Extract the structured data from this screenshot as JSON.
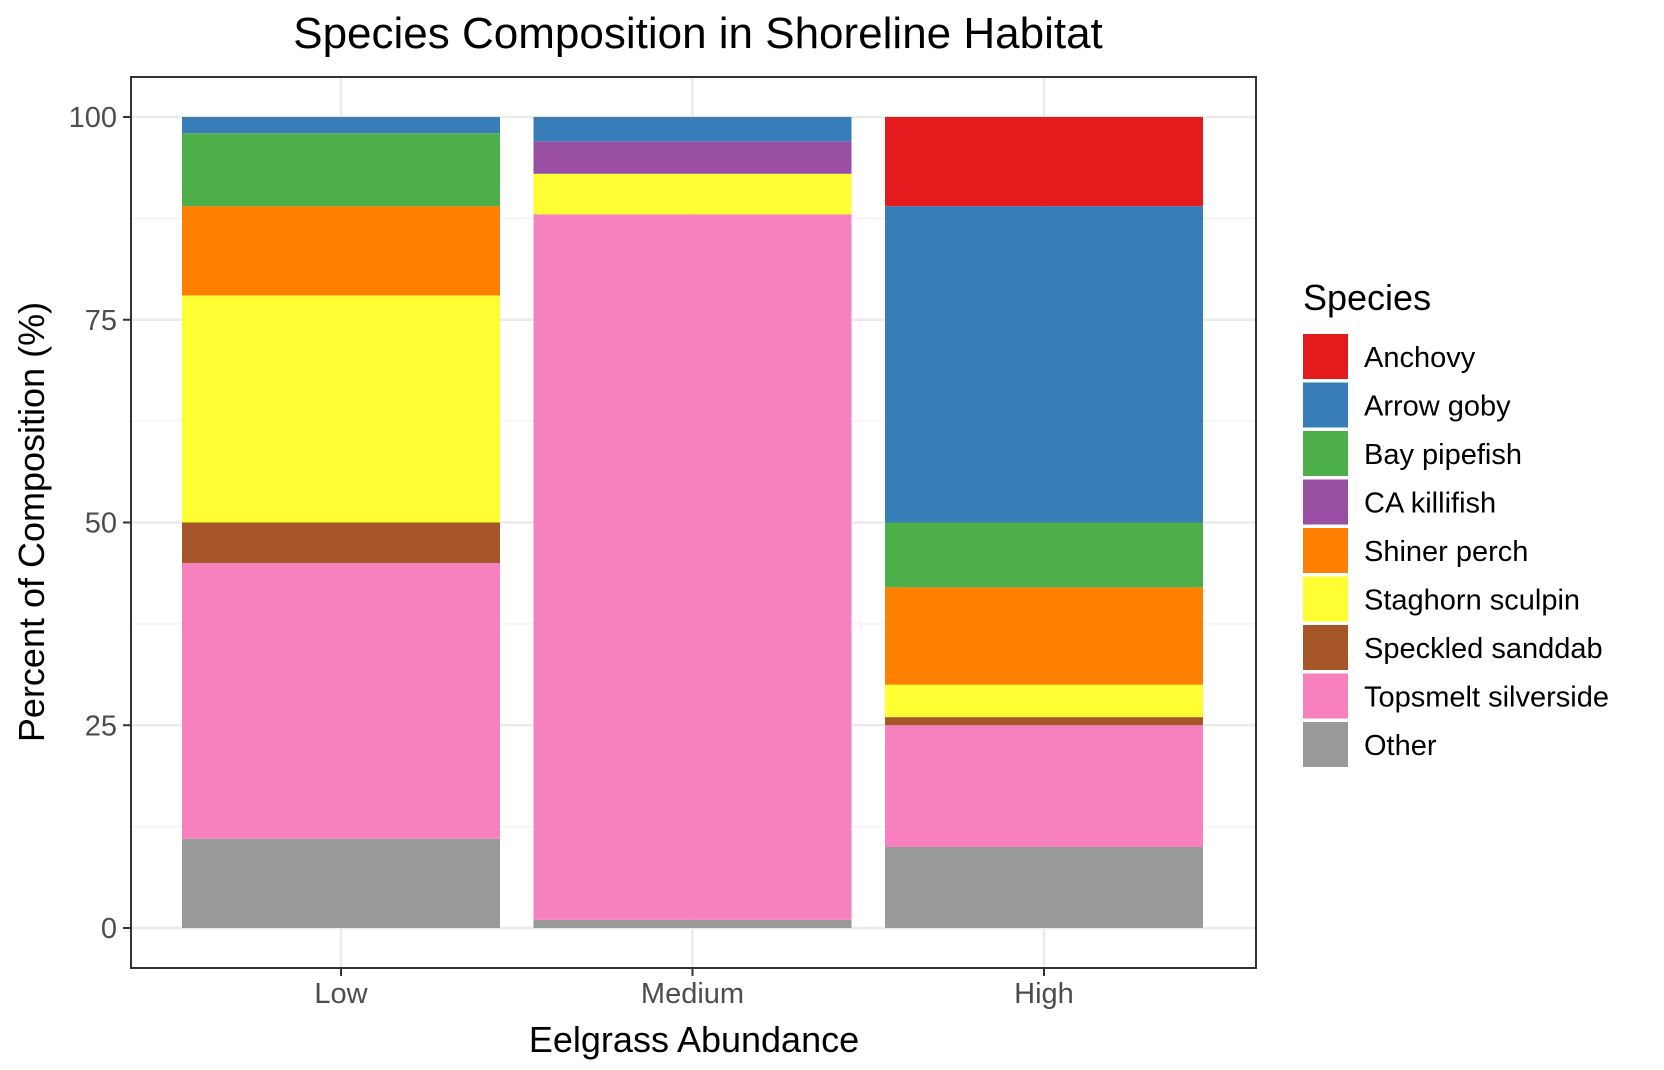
{
  "chart_data": {
    "type": "bar",
    "stacked": true,
    "title": "Species Composition in Shoreline Habitat",
    "xlabel": "Eelgrass Abundance",
    "ylabel": "Percent of Composition (%)",
    "ylim": [
      0,
      100
    ],
    "yticks": [
      0,
      25,
      50,
      75,
      100
    ],
    "grid": true,
    "legend_title": "Species",
    "legend_position": "right",
    "categories": [
      "Low",
      "Medium",
      "High"
    ],
    "series": [
      {
        "name": "Other",
        "color": "#999999",
        "values": [
          11,
          1,
          10
        ]
      },
      {
        "name": "Topsmelt silverside",
        "color": "#F781BF",
        "values": [
          34,
          87,
          15
        ]
      },
      {
        "name": "Speckled sanddab",
        "color": "#A65628",
        "values": [
          5,
          0,
          1
        ]
      },
      {
        "name": "Staghorn sculpin",
        "color": "#FFFF33",
        "values": [
          28,
          5,
          4
        ]
      },
      {
        "name": "Shiner perch",
        "color": "#FF7F00",
        "values": [
          11,
          0,
          12
        ]
      },
      {
        "name": "CA killifish",
        "color": "#984EA3",
        "values": [
          0,
          4,
          0
        ]
      },
      {
        "name": "Bay pipefish",
        "color": "#4DAF4A",
        "values": [
          9,
          0,
          8
        ]
      },
      {
        "name": "Arrow goby",
        "color": "#377EB8",
        "values": [
          2,
          3,
          39
        ]
      },
      {
        "name": "Anchovy",
        "color": "#E41A1C",
        "values": [
          0,
          0,
          11
        ]
      }
    ],
    "legend_order": [
      "Anchovy",
      "Arrow goby",
      "Bay pipefish",
      "CA killifish",
      "Shiner perch",
      "Staghorn sculpin",
      "Speckled sanddab",
      "Topsmelt silverside",
      "Other"
    ]
  }
}
